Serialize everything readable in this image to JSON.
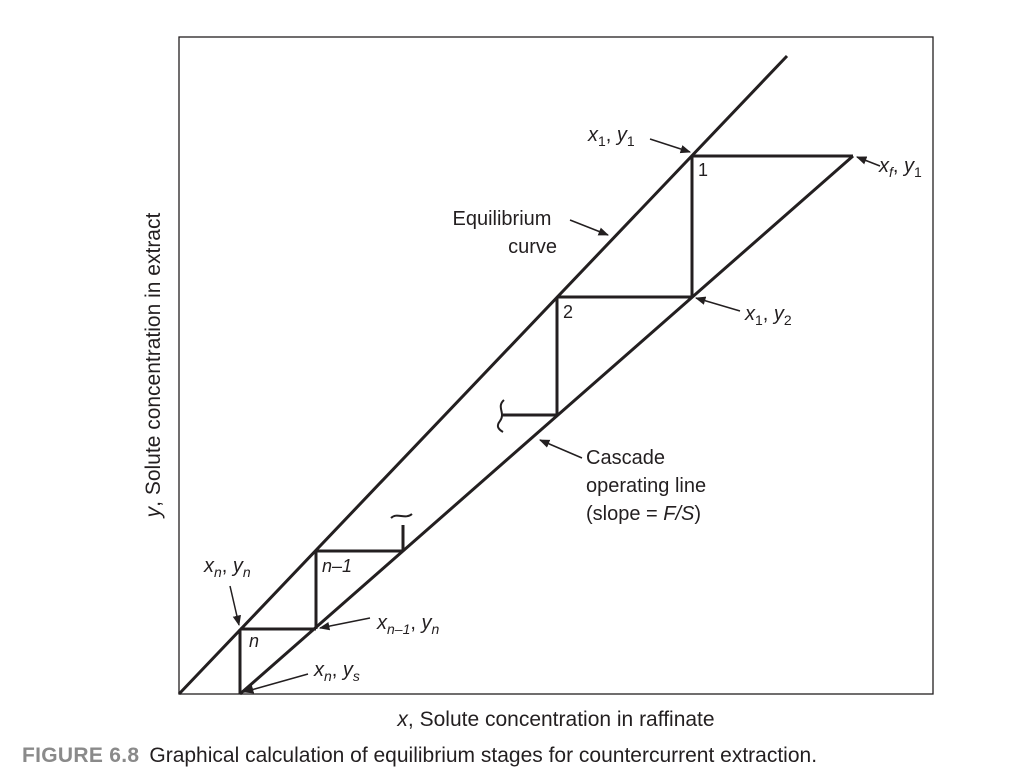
{
  "axes": {
    "x_label_var": "x",
    "x_label_text": ", Solute concentration in raffinate",
    "y_label_var": "y",
    "y_label_text": ", Solute concentration in extract"
  },
  "labels": {
    "equilibrium_curve_line1": "Equilibrium",
    "equilibrium_curve_line2": "curve",
    "operating_line_line1": "Cascade",
    "operating_line_line2": "operating line",
    "operating_line_line3_pre": "(slope = ",
    "operating_line_line3_var": "F/S",
    "operating_line_line3_post": ")"
  },
  "stages": {
    "stage_1": "1",
    "stage_2": "2",
    "stage_n_minus_1": "n–1",
    "stage_n": "n"
  },
  "points": {
    "x1_y1": {
      "x": "x",
      "x_sub": "1",
      "sep": ", ",
      "y": "y",
      "y_sub": "1"
    },
    "xf_y1": {
      "x": "x",
      "x_sub": "f",
      "sep": ", ",
      "y": "y",
      "y_sub": "1"
    },
    "x1_y2": {
      "x": "x",
      "x_sub": "1",
      "sep": ", ",
      "y": "y",
      "y_sub": "2"
    },
    "xn_yn": {
      "x": "x",
      "x_sub": "n",
      "sep": ", ",
      "y": "y",
      "y_sub": "n"
    },
    "xn1_yn": {
      "x": "x",
      "x_sub": "n–1",
      "sep": ", ",
      "y": "y",
      "y_sub": "n"
    },
    "xn_ys": {
      "x": "x",
      "x_sub": "n",
      "sep": ", ",
      "y": "y",
      "y_sub": "s"
    }
  },
  "caption": {
    "number": "FIGURE 6.8",
    "text": "Graphical calculation of equilibrium stages for countercurrent extraction."
  }
}
